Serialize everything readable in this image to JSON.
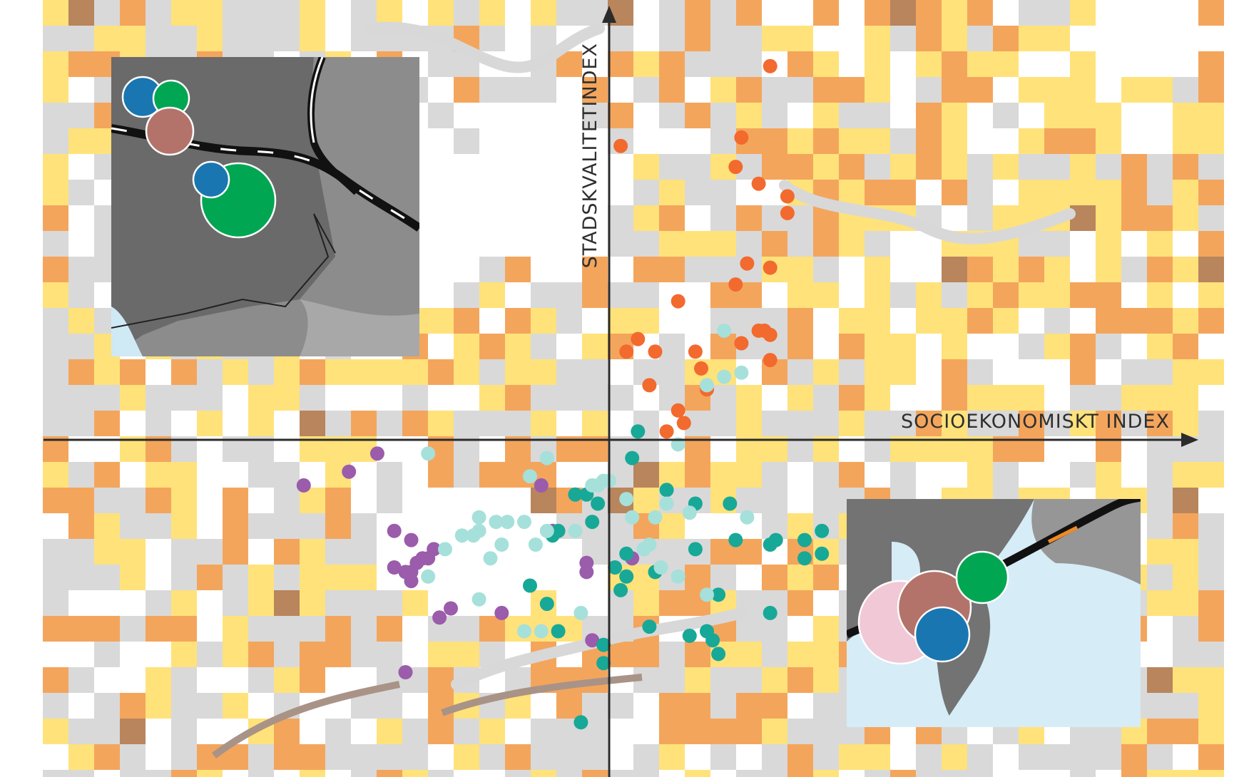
{
  "chart_data": {
    "type": "scatter",
    "title": "",
    "xlabel": "SOCIOEKONOMISKT INDEX",
    "ylabel": "STADSKVALITETINDEX",
    "xlim": [
      -1,
      1
    ],
    "ylim": [
      -0.74,
      1
    ],
    "grid": false,
    "legend": "none",
    "background": "map of grey, yellow and orange grid cells",
    "colors": {
      "group_a": "#f26a2e",
      "group_b": "#9a5cab",
      "group_c": "#18a897",
      "group_d": "#a6e0da",
      "map_grey": "#d9d9d9",
      "map_yellow": "#ffe27a",
      "map_orange": "#f4a55c",
      "map_brown": "#b8855d",
      "axis": "#2b2b2b"
    },
    "series": [
      {
        "key": "group_a",
        "points": [
          [
            0.28,
            0.89
          ],
          [
            0.23,
            0.72
          ],
          [
            0.02,
            0.7
          ],
          [
            0.22,
            0.65
          ],
          [
            0.26,
            0.61
          ],
          [
            0.31,
            0.58
          ],
          [
            0.31,
            0.54
          ],
          [
            0.24,
            0.42
          ],
          [
            0.28,
            0.41
          ],
          [
            0.22,
            0.37
          ],
          [
            0.12,
            0.33
          ],
          [
            0.27,
            0.26
          ],
          [
            0.26,
            0.26
          ],
          [
            0.28,
            0.25
          ],
          [
            0.05,
            0.24
          ],
          [
            0.23,
            0.23
          ],
          [
            0.03,
            0.21
          ],
          [
            0.08,
            0.21
          ],
          [
            0.15,
            0.21
          ],
          [
            0.16,
            0.17
          ],
          [
            0.28,
            0.19
          ],
          [
            0.07,
            0.13
          ],
          [
            0.17,
            0.12
          ],
          [
            0.12,
            0.07
          ],
          [
            0.13,
            0.04
          ],
          [
            0.1,
            0.02
          ]
        ]
      },
      {
        "key": "group_b",
        "points": [
          [
            -0.41,
            -0.03
          ],
          [
            -0.46,
            -0.07
          ],
          [
            -0.54,
            -0.1
          ],
          [
            -0.12,
            -0.1
          ],
          [
            -0.38,
            -0.2
          ],
          [
            -0.1,
            -0.2
          ],
          [
            -0.35,
            -0.22
          ],
          [
            -0.31,
            -0.24
          ],
          [
            -0.32,
            -0.26
          ],
          [
            -0.33,
            -0.26
          ],
          [
            -0.34,
            -0.27
          ],
          [
            -0.38,
            -0.28
          ],
          [
            -0.36,
            -0.29
          ],
          [
            -0.35,
            -0.29
          ],
          [
            -0.04,
            -0.27
          ],
          [
            0.04,
            -0.26
          ],
          [
            -0.04,
            -0.29
          ],
          [
            -0.35,
            -0.31
          ],
          [
            -0.28,
            -0.37
          ],
          [
            -0.19,
            -0.38
          ],
          [
            -0.3,
            -0.39
          ],
          [
            -0.03,
            -0.44
          ],
          [
            -0.36,
            -0.51
          ]
        ]
      },
      {
        "key": "group_c",
        "points": [
          [
            0.05,
            0.02
          ],
          [
            0.04,
            -0.04
          ],
          [
            -0.06,
            -0.12
          ],
          [
            -0.04,
            -0.12
          ],
          [
            -0.02,
            -0.14
          ],
          [
            0.1,
            -0.11
          ],
          [
            0.15,
            -0.14
          ],
          [
            0.21,
            -0.14
          ],
          [
            -0.03,
            -0.18
          ],
          [
            -0.09,
            -0.2
          ],
          [
            -0.1,
            -0.21
          ],
          [
            0.22,
            -0.22
          ],
          [
            0.29,
            -0.22
          ],
          [
            0.34,
            -0.22
          ],
          [
            0.37,
            -0.2
          ],
          [
            0.28,
            -0.23
          ],
          [
            0.15,
            -0.24
          ],
          [
            0.37,
            -0.25
          ],
          [
            0.34,
            -0.26
          ],
          [
            0.03,
            -0.25
          ],
          [
            0.01,
            -0.28
          ],
          [
            0.08,
            -0.29
          ],
          [
            0.03,
            -0.3
          ],
          [
            -0.14,
            -0.32
          ],
          [
            0.02,
            -0.33
          ],
          [
            0.19,
            -0.34
          ],
          [
            -0.11,
            -0.36
          ],
          [
            0.28,
            -0.38
          ],
          [
            0.07,
            -0.41
          ],
          [
            0.17,
            -0.42
          ],
          [
            0.14,
            -0.43
          ],
          [
            -0.09,
            -0.42
          ],
          [
            0.18,
            -0.44
          ],
          [
            -0.01,
            -0.45
          ],
          [
            0.19,
            -0.47
          ],
          [
            -0.01,
            -0.49
          ],
          [
            -0.05,
            -0.62
          ]
        ]
      },
      {
        "key": "group_d",
        "points": [
          [
            0.2,
            0.26
          ],
          [
            0.23,
            0.16
          ],
          [
            0.2,
            0.15
          ],
          [
            0.17,
            0.13
          ],
          [
            0.12,
            -0.01
          ],
          [
            -0.32,
            -0.03
          ],
          [
            -0.11,
            -0.04
          ],
          [
            -0.14,
            -0.08
          ],
          [
            -0.01,
            -0.09
          ],
          [
            0.0,
            -0.09
          ],
          [
            -0.02,
            -0.1
          ],
          [
            -0.03,
            -0.1
          ],
          [
            0.03,
            -0.13
          ],
          [
            0.1,
            -0.14
          ],
          [
            0.14,
            -0.16
          ],
          [
            0.24,
            -0.17
          ],
          [
            0.08,
            -0.17
          ],
          [
            0.04,
            -0.17
          ],
          [
            -0.23,
            -0.17
          ],
          [
            -0.2,
            -0.18
          ],
          [
            -0.18,
            -0.18
          ],
          [
            -0.15,
            -0.18
          ],
          [
            -0.23,
            -0.2
          ],
          [
            -0.24,
            -0.21
          ],
          [
            -0.26,
            -0.21
          ],
          [
            -0.11,
            -0.2
          ],
          [
            -0.06,
            -0.2
          ],
          [
            -0.19,
            -0.23
          ],
          [
            -0.13,
            -0.23
          ],
          [
            0.07,
            -0.23
          ],
          [
            -0.29,
            -0.24
          ],
          [
            0.06,
            -0.24
          ],
          [
            -0.21,
            -0.26
          ],
          [
            0.09,
            -0.28
          ],
          [
            -0.32,
            -0.3
          ],
          [
            0.12,
            -0.3
          ],
          [
            -0.23,
            -0.35
          ],
          [
            0.17,
            -0.34
          ],
          [
            -0.05,
            -0.38
          ],
          [
            -0.15,
            -0.42
          ],
          [
            -0.12,
            -0.42
          ]
        ]
      }
    ],
    "insets": [
      {
        "position": "top-left",
        "bubbles": [
          "#1a76b0",
          "#00a651",
          "#b3736a",
          "#00a651",
          "#1a76b0"
        ]
      },
      {
        "position": "bottom-right",
        "bubbles": [
          "#f1c8d6",
          "#b3736a",
          "#00a651",
          "#1a76b0"
        ]
      }
    ]
  }
}
